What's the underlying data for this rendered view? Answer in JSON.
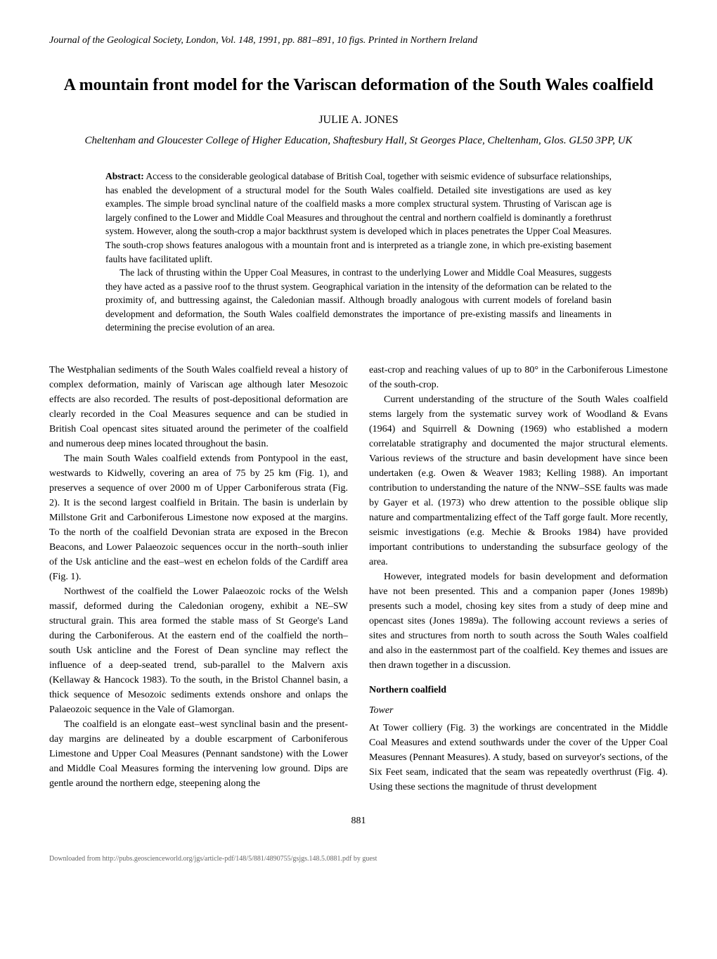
{
  "journal_header": "Journal of the Geological Society, London, Vol. 148, 1991, pp. 881–891, 10 figs. Printed in Northern Ireland",
  "title": "A mountain front model for the Variscan deformation of the South Wales coalfield",
  "author": "JULIE A. JONES",
  "affiliation": "Cheltenham and Gloucester College of Higher Education, Shaftesbury Hall, St Georges Place, Cheltenham, Glos. GL50 3PP, UK",
  "abstract_label": "Abstract:",
  "abstract_p1": " Access to the considerable geological database of British Coal, together with seismic evidence of subsurface relationships, has enabled the development of a structural model for the South Wales coalfield. Detailed site investigations are used as key examples. The simple broad synclinal nature of the coalfield masks a more complex structural system. Thrusting of Variscan age is largely confined to the Lower and Middle Coal Measures and throughout the central and northern coalfield is dominantly a forethrust system. However, along the south-crop a major backthrust system is developed which in places penetrates the Upper Coal Measures. The south-crop shows features analogous with a mountain front and is interpreted as a triangle zone, in which pre-existing basement faults have facilitated uplift.",
  "abstract_p2": "The lack of thrusting within the Upper Coal Measures, in contrast to the underlying Lower and Middle Coal Measures, suggests they have acted as a passive roof to the thrust system. Geographical variation in the intensity of the deformation can be related to the proximity of, and buttressing against, the Caledonian massif. Although broadly analogous with current models of foreland basin development and deformation, the South Wales coalfield demonstrates the importance of pre-existing massifs and lineaments in determining the precise evolution of an area.",
  "left_col": {
    "p1": "The Westphalian sediments of the South Wales coalfield reveal a history of complex deformation, mainly of Variscan age although later Mesozoic effects are also recorded. The results of post-depositional deformation are clearly recorded in the Coal Measures sequence and can be studied in British Coal opencast sites situated around the perimeter of the coalfield and numerous deep mines located throughout the basin.",
    "p2": "The main South Wales coalfield extends from Pontypool in the east, westwards to Kidwelly, covering an area of 75 by 25 km (Fig. 1), and preserves a sequence of over 2000 m of Upper Carboniferous strata (Fig. 2). It is the second largest coalfield in Britain. The basin is underlain by Millstone Grit and Carboniferous Limestone now exposed at the margins. To the north of the coalfield Devonian strata are exposed in the Brecon Beacons, and Lower Palaeozoic sequences occur in the north–south inlier of the Usk anticline and the east–west en echelon folds of the Cardiff area (Fig. 1).",
    "p3": "Northwest of the coalfield the Lower Palaeozoic rocks of the Welsh massif, deformed during the Caledonian orogeny, exhibit a NE–SW structural grain. This area formed the stable mass of St George's Land during the Carboniferous. At the eastern end of the coalfield the north–south Usk anticline and the Forest of Dean syncline may reflect the influence of a deep-seated trend, sub-parallel to the Malvern axis (Kellaway & Hancock 1983). To the south, in the Bristol Channel basin, a thick sequence of Mesozoic sediments extends onshore and onlaps the Palaeozoic sequence in the Vale of Glamorgan.",
    "p4": "The coalfield is an elongate east–west synclinal basin and the present-day margins are delineated by a double escarpment of Carboniferous Limestone and Upper Coal Measures (Pennant sandstone) with the Lower and Middle Coal Measures forming the intervening low ground. Dips are gentle around the northern edge, steepening along the"
  },
  "right_col": {
    "p1": "east-crop and reaching values of up to 80° in the Carboniferous Limestone of the south-crop.",
    "p2": "Current understanding of the structure of the South Wales coalfield stems largely from the systematic survey work of Woodland & Evans (1964) and Squirrell & Downing (1969) who established a modern correlatable stratigraphy and documented the major structural elements. Various reviews of the structure and basin development have since been undertaken (e.g. Owen & Weaver 1983; Kelling 1988). An important contribution to understanding the nature of the NNW–SSE faults was made by Gayer et al. (1973) who drew attention to the possible oblique slip nature and compartmentalizing effect of the Taff gorge fault. More recently, seismic investigations (e.g. Mechie & Brooks 1984) have provided important contributions to understanding the subsurface geology of the area.",
    "p3": "However, integrated models for basin development and deformation have not been presented. This and a companion paper (Jones 1989b) presents such a model, chosing key sites from a study of deep mine and opencast sites (Jones 1989a). The following account reviews a series of sites and structures from north to south across the South Wales coalfield and also in the easternmost part of the coalfield. Key themes and issues are then drawn together in a discussion.",
    "section_heading": "Northern coalfield",
    "sub_heading": "Tower",
    "p4": "At Tower colliery (Fig. 3) the workings are concentrated in the Middle Coal Measures and extend southwards under the cover of the Upper Coal Measures (Pennant Measures). A study, based on surveyor's sections, of the Six Feet seam, indicated that the seam was repeatedly overthrust (Fig. 4). Using these sections the magnitude of thrust development"
  },
  "page_number": "881",
  "footer": "Downloaded from http://pubs.geoscienceworld.org/jgs/article-pdf/148/5/881/4890755/gsjgs.148.5.0881.pdf by guest"
}
